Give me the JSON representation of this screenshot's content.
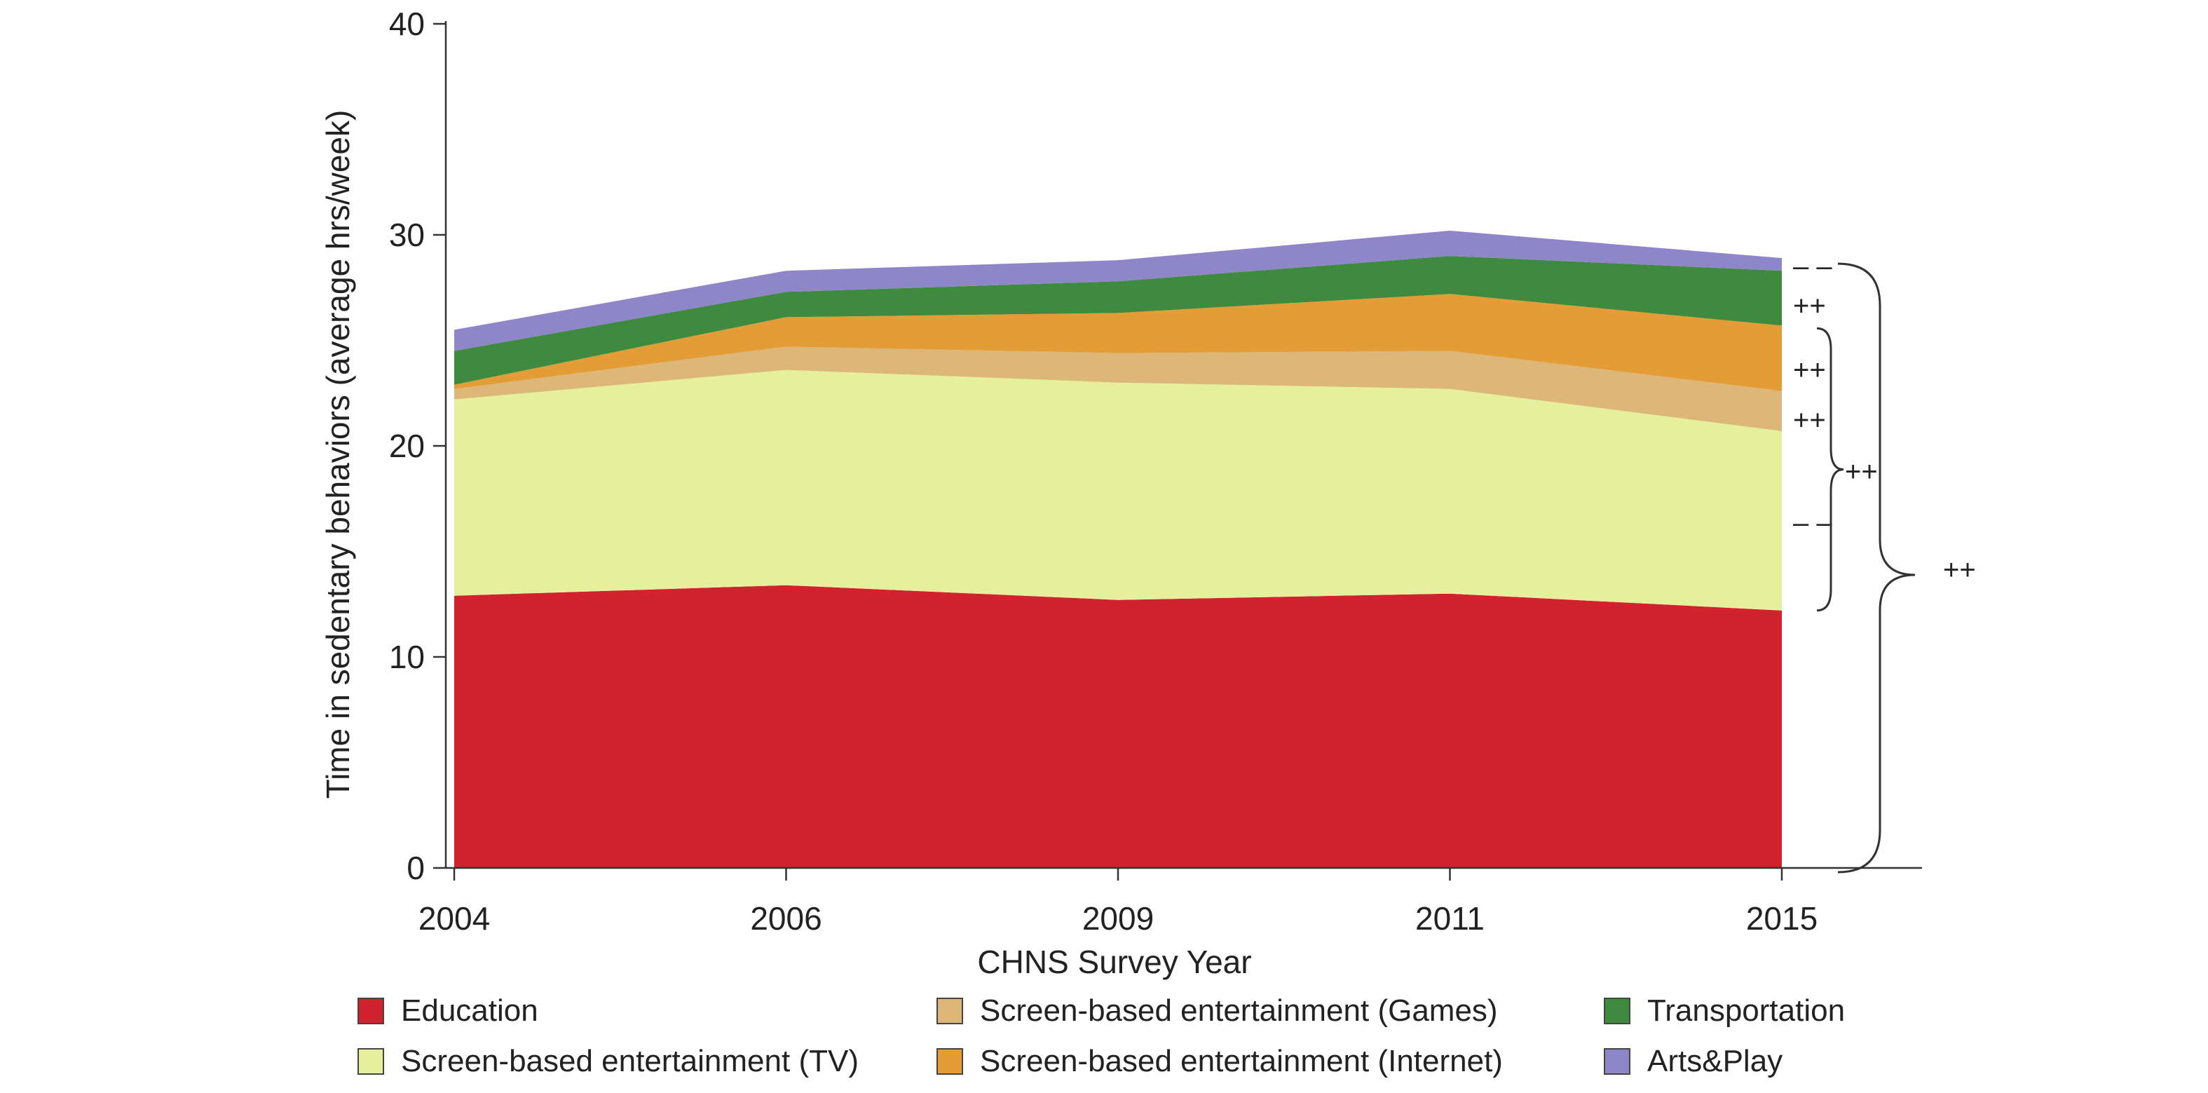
{
  "chart_data": {
    "type": "area",
    "stacked": true,
    "categories": [
      "2004",
      "2006",
      "2009",
      "2011",
      "2015"
    ],
    "xlabel": "CHNS Survey Year",
    "ylabel": "Time in sedentary behaviors (average hrs/week)",
    "ylim": [
      0,
      40
    ],
    "yticks": [
      0,
      10,
      20,
      30,
      40
    ],
    "grid": false,
    "legend_position": "bottom",
    "series": [
      {
        "name": "Education",
        "color": "#d0232f",
        "values": [
          12.9,
          13.4,
          12.7,
          13.0,
          12.2
        ]
      },
      {
        "name": "Screen-based entertainment (TV)",
        "color": "#e5ef9c",
        "values": [
          9.3,
          10.2,
          10.3,
          9.7,
          8.5
        ]
      },
      {
        "name": "Screen-based entertainment (Games)",
        "color": "#dcb777",
        "values": [
          0.5,
          1.1,
          1.4,
          1.8,
          1.9
        ]
      },
      {
        "name": "Screen-based entertainment (Internet)",
        "color": "#e49c37",
        "values": [
          0.2,
          1.4,
          1.9,
          2.7,
          3.1
        ]
      },
      {
        "name": "Transportation",
        "color": "#3e8a3e",
        "values": [
          1.6,
          1.2,
          1.5,
          1.8,
          2.6
        ]
      },
      {
        "name": "Arts&Play",
        "color": "#8f86c9",
        "values": [
          1.0,
          1.0,
          1.0,
          1.2,
          0.6
        ]
      }
    ],
    "legend_order": [
      "Education",
      "Screen-based entertainment (Games)",
      "Transportation",
      "Screen-based entertainment (TV)",
      "Screen-based entertainment (Internet)",
      "Arts&Play"
    ],
    "annotations": [
      {
        "text": "– –",
        "target": "Arts&Play"
      },
      {
        "text": "++",
        "target": "Transportation"
      },
      {
        "text": "++",
        "target": "Screen-based entertainment (Internet)"
      },
      {
        "text": "++",
        "target": "Screen-based entertainment (Games)"
      },
      {
        "text": "– –",
        "target": "Screen-based entertainment (TV)"
      },
      {
        "text": "++",
        "target": "Screen-based entertainment total"
      },
      {
        "text": "++",
        "target": "Total sedentary time"
      }
    ]
  }
}
